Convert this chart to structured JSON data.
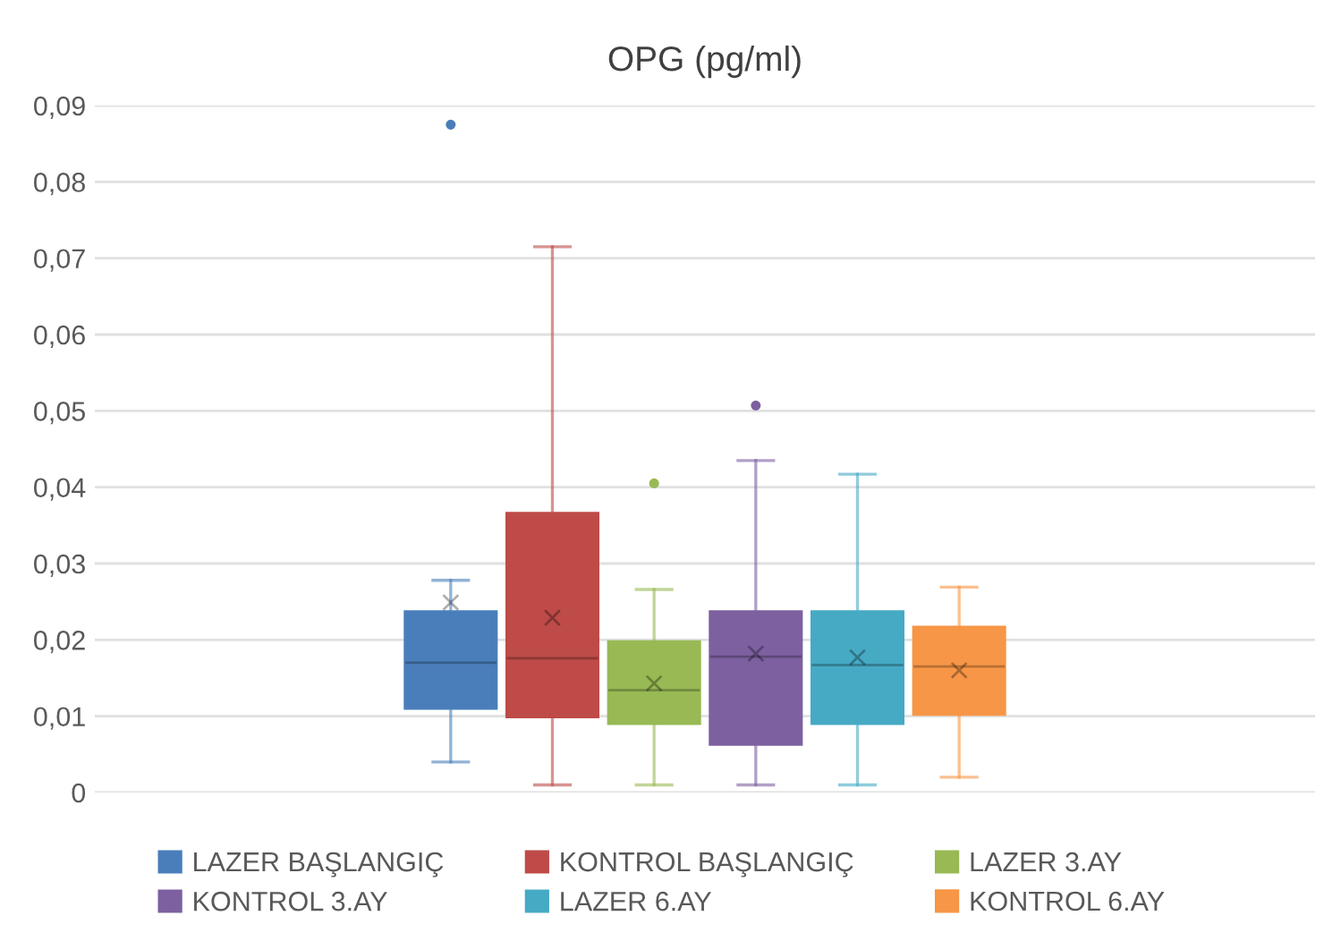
{
  "chart_data": {
    "type": "box",
    "title": "OPG (pg/ml)",
    "categories": [
      null
    ],
    "series": [
      {
        "name": "LAZER BAŞLANGIÇ",
        "color": "#4a7ebb",
        "boxes": [
          {
            "low": 0.004,
            "q1": 0.011,
            "median": 0.017,
            "q3": 0.0237,
            "high": 0.0278,
            "mean": 0.0249,
            "outliers": [
              0.0875
            ]
          }
        ]
      },
      {
        "name": "KONTROL BAŞLANGIÇ",
        "color": "#be4b48",
        "boxes": [
          {
            "low": 0.001,
            "q1": 0.0099,
            "median": 0.0176,
            "q3": 0.0366,
            "high": 0.0715,
            "mean": 0.0229
          }
        ]
      },
      {
        "name": "LAZER 3.AY",
        "color": "#98b954",
        "boxes": [
          {
            "low": 0.001,
            "q1": 0.009,
            "median": 0.0134,
            "q3": 0.0198,
            "high": 0.0266,
            "mean": 0.0143,
            "outliers": [
              0.0405
            ]
          }
        ]
      },
      {
        "name": "KONTROL 3.AY",
        "color": "#7d60a0",
        "boxes": [
          {
            "low": 0.001,
            "q1": 0.0063,
            "median": 0.0178,
            "q3": 0.0237,
            "high": 0.0435,
            "mean": 0.0182,
            "outliers": [
              0.0507
            ]
          }
        ]
      },
      {
        "name": "LAZER 6.AY",
        "color": "#46aac5",
        "boxes": [
          {
            "low": 0.001,
            "q1": 0.009,
            "median": 0.0167,
            "q3": 0.0237,
            "high": 0.0417,
            "mean": 0.0177
          }
        ]
      },
      {
        "name": "KONTROL 6.AY",
        "color": "#f79646",
        "boxes": [
          {
            "low": 0.002,
            "q1": 0.0102,
            "median": 0.0165,
            "q3": 0.0217,
            "high": 0.0269,
            "mean": 0.016
          }
        ]
      }
    ],
    "ylim": [
      0,
      0.09
    ],
    "yticks": [
      0,
      {
        "value": 0.01,
        "label": "0,01"
      },
      {
        "value": 0.02,
        "label": "0,02"
      },
      {
        "value": 0.03,
        "label": "0,03"
      },
      {
        "value": 0.04,
        "label": "0,04"
      },
      {
        "value": 0.05,
        "label": "0,05"
      },
      {
        "value": 0.06,
        "label": "0,06"
      },
      {
        "value": 0.07,
        "label": "0,07"
      },
      {
        "value": 0.08,
        "label": "0,08"
      },
      {
        "value": 0.09,
        "label": "0,09"
      }
    ],
    "grid": "y",
    "legend": "bottom",
    "marker": "cross"
  }
}
